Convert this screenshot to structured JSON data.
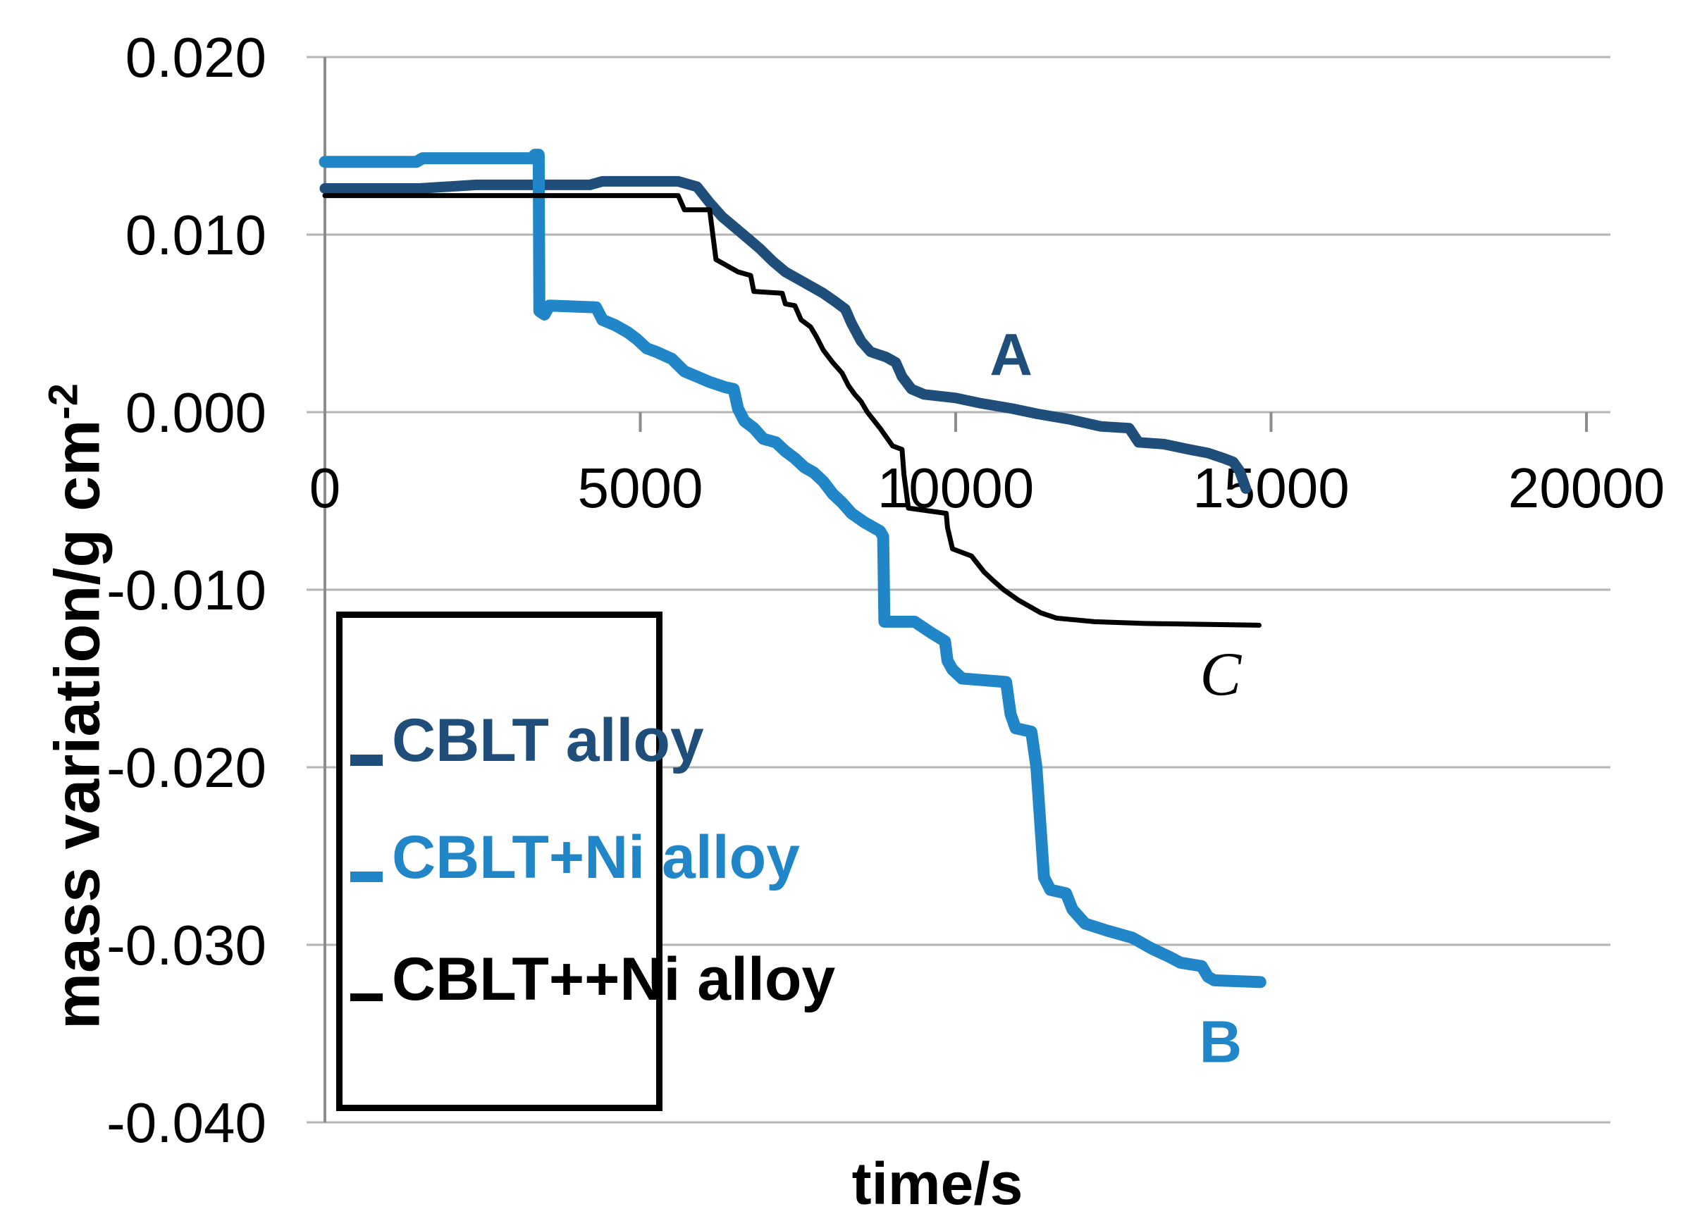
{
  "chart_data": {
    "type": "line",
    "title": "",
    "xlabel": "time/s",
    "ylabel": "mass variation/g cm⁻²",
    "ylabel_main": "mass variation/g cm",
    "ylabel_sup": "-2",
    "xlim": [
      0,
      20000
    ],
    "ylim": [
      -0.04,
      0.02
    ],
    "x_ticks": [
      0,
      5000,
      10000,
      15000,
      20000
    ],
    "x_tick_labels": [
      "0",
      "5000",
      "10000",
      "15000",
      "20000"
    ],
    "y_ticks": [
      0.02,
      0.01,
      0.0,
      -0.01,
      -0.02,
      -0.03,
      -0.04
    ],
    "y_tick_labels": [
      "0.020",
      "0.010",
      "0.000",
      "-0.010",
      "-0.020",
      "-0.030",
      "-0.040"
    ],
    "grid": true,
    "grid_color": "#B3B3B3",
    "axis_color": "#8C8C8C",
    "legend_position": "inside-lower-left",
    "series": [
      {
        "name": "CBLT alloy",
        "color": "#1E4E79",
        "stroke_width": 15,
        "label": "A",
        "label_style": "bold",
        "label_pos": [
          10880,
          0.0032
        ],
        "points": [
          [
            0,
            0.0126
          ],
          [
            1500,
            0.0126
          ],
          [
            2400,
            0.0128
          ],
          [
            4200,
            0.0128
          ],
          [
            4400,
            0.013
          ],
          [
            5600,
            0.013
          ],
          [
            5900,
            0.0127
          ],
          [
            6100,
            0.0118
          ],
          [
            6300,
            0.011
          ],
          [
            6500,
            0.0104
          ],
          [
            6700,
            0.0098
          ],
          [
            6900,
            0.0092
          ],
          [
            7100,
            0.0085
          ],
          [
            7300,
            0.0079
          ],
          [
            7600,
            0.0073
          ],
          [
            7900,
            0.0067
          ],
          [
            8100,
            0.0062
          ],
          [
            8250,
            0.0058
          ],
          [
            8350,
            0.005
          ],
          [
            8500,
            0.004
          ],
          [
            8650,
            0.0034
          ],
          [
            8900,
            0.0031
          ],
          [
            9050,
            0.0028
          ],
          [
            9150,
            0.002
          ],
          [
            9300,
            0.0013
          ],
          [
            9500,
            0.001
          ],
          [
            10000,
            0.0008
          ],
          [
            10400,
            0.0005
          ],
          [
            10900,
            0.0002
          ],
          [
            11300,
            -0.0001
          ],
          [
            11800,
            -0.0004
          ],
          [
            12300,
            -0.0008
          ],
          [
            12750,
            -0.0009
          ],
          [
            12900,
            -0.0017
          ],
          [
            13300,
            -0.0018
          ],
          [
            13700,
            -0.0021
          ],
          [
            14000,
            -0.0023
          ],
          [
            14250,
            -0.0026
          ],
          [
            14400,
            -0.0028
          ],
          [
            14500,
            -0.0033
          ],
          [
            14600,
            -0.0043
          ]
        ]
      },
      {
        "name": "CBLT+Ni alloy",
        "color": "#2086C8",
        "stroke_width": 17,
        "label": "B",
        "label_style": "bold",
        "label_pos": [
          14200,
          -0.0355
        ],
        "points": [
          [
            0,
            0.0141
          ],
          [
            1450,
            0.0141
          ],
          [
            1550,
            0.0143
          ],
          [
            3280,
            0.0143
          ],
          [
            3330,
            0.0145
          ],
          [
            3390,
            0.0145
          ],
          [
            3400,
            0.0057
          ],
          [
            3480,
            0.0055
          ],
          [
            3560,
            0.006
          ],
          [
            4300,
            0.0059
          ],
          [
            4400,
            0.0052
          ],
          [
            4600,
            0.0049
          ],
          [
            4800,
            0.0045
          ],
          [
            4950,
            0.0041
          ],
          [
            5100,
            0.0036
          ],
          [
            5250,
            0.0034
          ],
          [
            5500,
            0.003
          ],
          [
            5700,
            0.0023
          ],
          [
            5900,
            0.002
          ],
          [
            6100,
            0.0017
          ],
          [
            6350,
            0.0014
          ],
          [
            6480,
            0.0013
          ],
          [
            6550,
            0.0002
          ],
          [
            6650,
            -0.0005
          ],
          [
            6800,
            -0.0009
          ],
          [
            6950,
            -0.0015
          ],
          [
            7150,
            -0.0017
          ],
          [
            7300,
            -0.0022
          ],
          [
            7450,
            -0.0026
          ],
          [
            7600,
            -0.0031
          ],
          [
            7750,
            -0.0034
          ],
          [
            7900,
            -0.0039
          ],
          [
            8050,
            -0.0046
          ],
          [
            8200,
            -0.0051
          ],
          [
            8350,
            -0.0057
          ],
          [
            8550,
            -0.0062
          ],
          [
            8800,
            -0.0067
          ],
          [
            8850,
            -0.007
          ],
          [
            8870,
            -0.0118
          ],
          [
            9350,
            -0.0118
          ],
          [
            9600,
            -0.0124
          ],
          [
            9830,
            -0.0129
          ],
          [
            9870,
            -0.014
          ],
          [
            9950,
            -0.0145
          ],
          [
            10100,
            -0.015
          ],
          [
            10800,
            -0.0152
          ],
          [
            10870,
            -0.017
          ],
          [
            10950,
            -0.0178
          ],
          [
            11200,
            -0.018
          ],
          [
            11280,
            -0.02
          ],
          [
            11400,
            -0.0262
          ],
          [
            11500,
            -0.0269
          ],
          [
            11750,
            -0.0271
          ],
          [
            11850,
            -0.028
          ],
          [
            12050,
            -0.0288
          ],
          [
            12400,
            -0.0292
          ],
          [
            12800,
            -0.0296
          ],
          [
            13100,
            -0.0302
          ],
          [
            13400,
            -0.0307
          ],
          [
            13560,
            -0.031
          ],
          [
            13900,
            -0.0312
          ],
          [
            14000,
            -0.0318
          ],
          [
            14100,
            -0.032
          ],
          [
            14830,
            -0.0321
          ]
        ]
      },
      {
        "name": "CBLT++Ni alloy",
        "color": "#000000",
        "stroke_width": 7,
        "label": "C",
        "label_style": "italic",
        "label_pos": [
          14200,
          -0.0148
        ],
        "points": [
          [
            0,
            0.0122
          ],
          [
            5600,
            0.0122
          ],
          [
            5700,
            0.0114
          ],
          [
            6100,
            0.0114
          ],
          [
            6150,
            0.01
          ],
          [
            6200,
            0.0086
          ],
          [
            6400,
            0.0082
          ],
          [
            6550,
            0.0079
          ],
          [
            6750,
            0.0077
          ],
          [
            6800,
            0.0068
          ],
          [
            7250,
            0.0067
          ],
          [
            7300,
            0.0061
          ],
          [
            7450,
            0.006
          ],
          [
            7550,
            0.0052
          ],
          [
            7700,
            0.0048
          ],
          [
            7800,
            0.0042
          ],
          [
            7900,
            0.0035
          ],
          [
            8050,
            0.0028
          ],
          [
            8200,
            0.0022
          ],
          [
            8300,
            0.0015
          ],
          [
            8400,
            0.001
          ],
          [
            8500,
            0.0006
          ],
          [
            8600,
            0.0
          ],
          [
            8800,
            -0.0009
          ],
          [
            8900,
            -0.0014
          ],
          [
            9000,
            -0.0019
          ],
          [
            9150,
            -0.0021
          ],
          [
            9180,
            -0.0035
          ],
          [
            9250,
            -0.0054
          ],
          [
            9850,
            -0.0057
          ],
          [
            9870,
            -0.0065
          ],
          [
            9950,
            -0.0077
          ],
          [
            10250,
            -0.0081
          ],
          [
            10450,
            -0.009
          ],
          [
            10600,
            -0.0095
          ],
          [
            10760,
            -0.01
          ],
          [
            11000,
            -0.0106
          ],
          [
            11200,
            -0.011
          ],
          [
            11350,
            -0.0113
          ],
          [
            11600,
            -0.0116
          ],
          [
            12200,
            -0.0118
          ],
          [
            13000,
            -0.0119
          ],
          [
            14810,
            -0.012
          ]
        ]
      }
    ]
  },
  "legend": {
    "items": [
      {
        "label": "CBLT alloy",
        "color": "#1E4E79",
        "swatch_thickness": 16
      },
      {
        "label": "CBLT+Ni alloy",
        "color": "#2086C8",
        "swatch_thickness": 15
      },
      {
        "label": "CBLT++Ni alloy",
        "color": "#000000",
        "swatch_thickness": 11
      }
    ]
  }
}
